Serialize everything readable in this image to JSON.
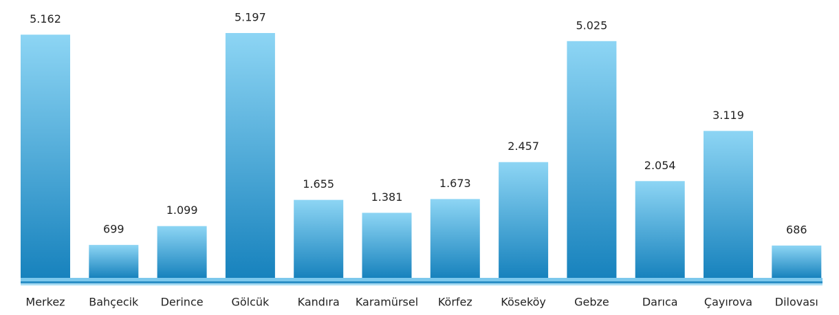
{
  "chart_data": {
    "type": "bar",
    "categories": [
      "Merkez",
      "Bahçecik",
      "Derince",
      "Gölcük",
      "Kandıra",
      "Karamürsel",
      "Körfez",
      "Köseköy",
      "Gebze",
      "Darıca",
      "Çayırova",
      "Dilovası"
    ],
    "values": [
      5162,
      699,
      1099,
      5197,
      1655,
      1381,
      1673,
      2457,
      5025,
      2054,
      3119,
      686
    ],
    "value_labels": [
      "5.162",
      "699",
      "1.099",
      "5.197",
      "1.655",
      "1.381",
      "1.673",
      "2.457",
      "5.025",
      "2.054",
      "3.119",
      "686"
    ]
  }
}
